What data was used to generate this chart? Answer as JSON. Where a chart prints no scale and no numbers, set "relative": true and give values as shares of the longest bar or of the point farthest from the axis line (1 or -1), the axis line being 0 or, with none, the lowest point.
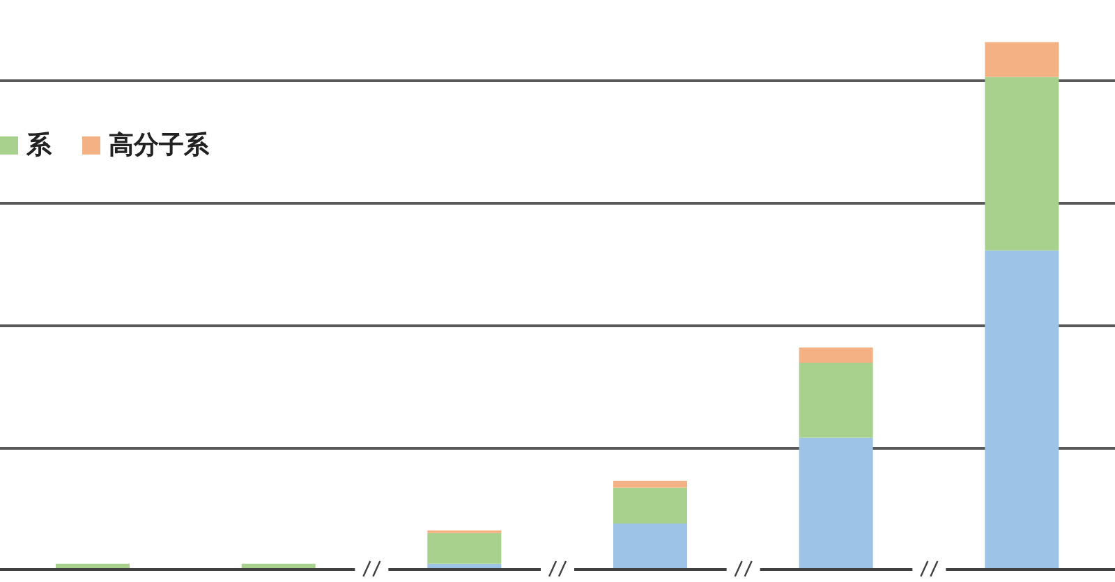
{
  "chart_data": {
    "type": "bar",
    "stacked": true,
    "relative": true,
    "grid": "y",
    "legend": "top left",
    "categories": [
      null,
      null,
      null,
      null,
      null,
      null
    ],
    "series": [
      {
        "color": "#9dc3e6",
        "values": [
          0,
          0,
          0.011,
          0.087,
          0.25,
          0.605
        ]
      },
      {
        "name": "系",
        "color": "#a9d18e",
        "values": [
          0.011,
          0.011,
          0.058,
          0.068,
          0.142,
          0.329
        ]
      },
      {
        "name": "高分子系",
        "color": "#f4b183",
        "values": [
          0,
          0,
          0.005,
          0.013,
          0.029,
          0.066
        ]
      }
    ]
  }
}
